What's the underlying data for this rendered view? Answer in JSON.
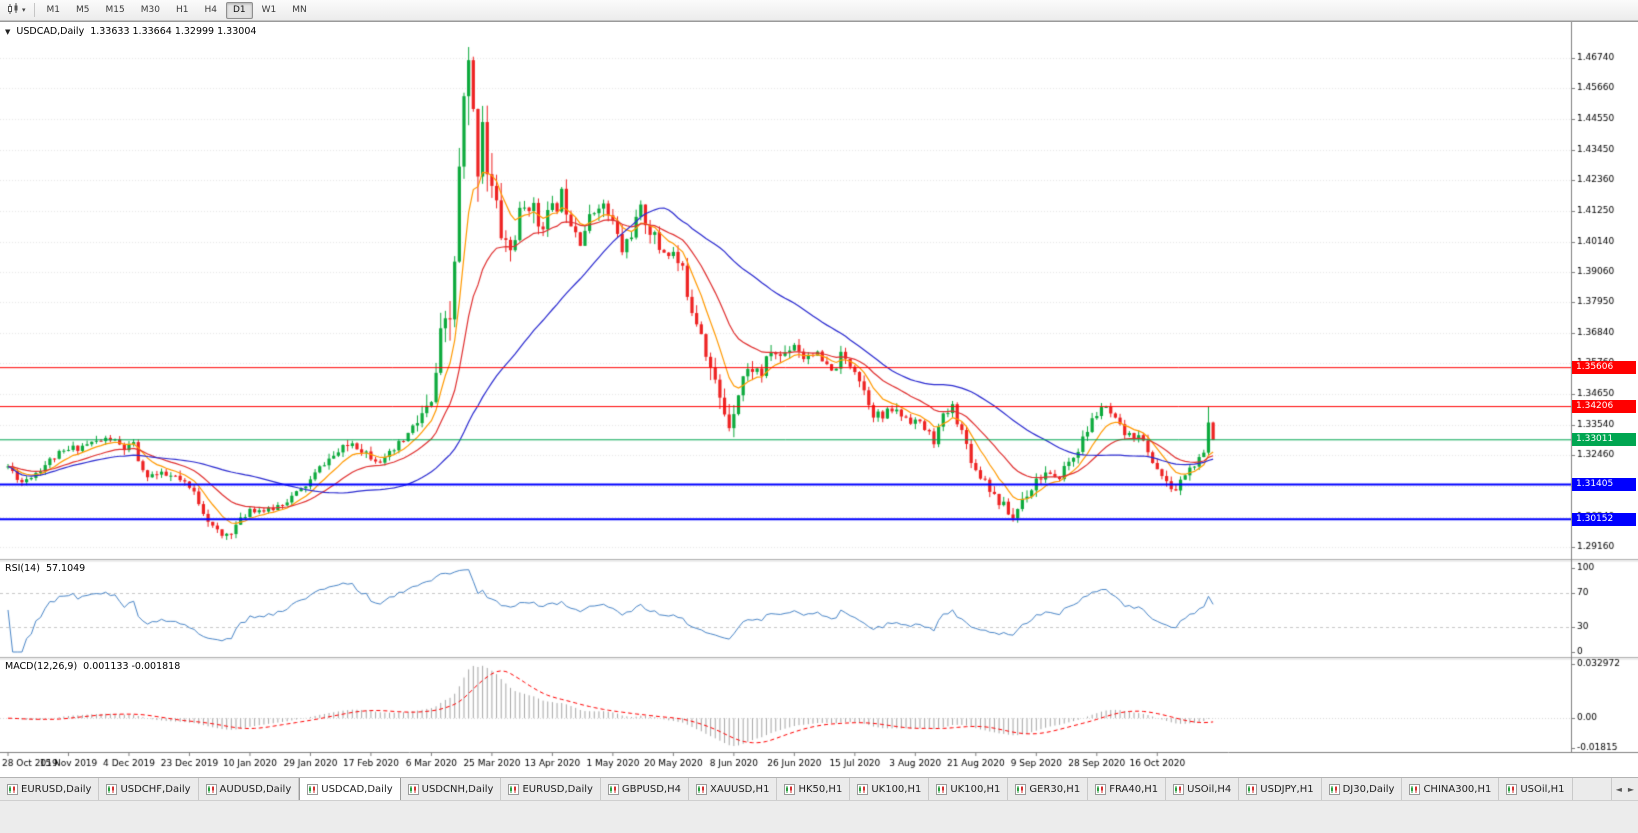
{
  "toolbar": {
    "timeframes": [
      "M1",
      "M5",
      "M15",
      "M30",
      "H1",
      "H4",
      "D1",
      "W1",
      "MN"
    ],
    "active": "D1"
  },
  "chart": {
    "symbol_period": "USDCAD,Daily",
    "ohlc_text": "1.33633 1.33664 1.32999 1.33004",
    "collapse_glyph": "▼"
  },
  "rsi_panel": {
    "label": "RSI(14)",
    "value": "57.1049"
  },
  "macd_panel": {
    "label": "MACD(12,26,9)",
    "value": "0.001133 -0.001818"
  },
  "chart_data": {
    "type": "candlestick",
    "symbol": "USDCAD",
    "timeframe": "Daily",
    "num_candles": 260,
    "seed": 11,
    "last_candle": {
      "o": 1.33633,
      "h": 1.33664,
      "l": 1.32999,
      "c": 1.33004
    },
    "prev_candle": {
      "h": 1.3421,
      "c": 1.33633
    },
    "close_anchors": [
      [
        0,
        1.3205
      ],
      [
        3,
        1.315
      ],
      [
        6,
        1.3185
      ],
      [
        10,
        1.324
      ],
      [
        14,
        1.327
      ],
      [
        18,
        1.329
      ],
      [
        22,
        1.3305
      ],
      [
        25,
        1.3268
      ],
      [
        27,
        1.328
      ],
      [
        29,
        1.318
      ],
      [
        33,
        1.3172
      ],
      [
        36,
        1.3165
      ],
      [
        40,
        1.311
      ],
      [
        44,
        1.2985
      ],
      [
        46,
        1.2952
      ],
      [
        48,
        1.2975
      ],
      [
        50,
        1.301
      ],
      [
        52,
        1.3055
      ],
      [
        56,
        1.3045
      ],
      [
        60,
        1.3085
      ],
      [
        63,
        1.312
      ],
      [
        65,
        1.3155
      ],
      [
        68,
        1.322
      ],
      [
        71,
        1.3255
      ],
      [
        74,
        1.3292
      ],
      [
        78,
        1.3245
      ],
      [
        81,
        1.3225
      ],
      [
        84,
        1.328
      ],
      [
        87,
        1.334
      ],
      [
        89,
        1.339
      ],
      [
        91,
        1.342
      ],
      [
        93,
        1.366
      ],
      [
        95,
        1.3725
      ],
      [
        96,
        1.395
      ],
      [
        97,
        1.425
      ],
      [
        98,
        1.45
      ],
      [
        99,
        1.462
      ],
      [
        100,
        1.445
      ],
      [
        101,
        1.43
      ],
      [
        102,
        1.448
      ],
      [
        103,
        1.428
      ],
      [
        104,
        1.42
      ],
      [
        106,
        1.405
      ],
      [
        108,
        1.398
      ],
      [
        110,
        1.41
      ],
      [
        112,
        1.416
      ],
      [
        114,
        1.408
      ],
      [
        117,
        1.412
      ],
      [
        119,
        1.418
      ],
      [
        121,
        1.41
      ],
      [
        123,
        1.403
      ],
      [
        125,
        1.409
      ],
      [
        127,
        1.416
      ],
      [
        129,
        1.411
      ],
      [
        130,
        1.408
      ],
      [
        132,
        1.398
      ],
      [
        134,
        1.405
      ],
      [
        136,
        1.412
      ],
      [
        138,
        1.406
      ],
      [
        140,
        1.399
      ],
      [
        143,
        1.397
      ],
      [
        145,
        1.39
      ],
      [
        147,
        1.378
      ],
      [
        149,
        1.37
      ],
      [
        151,
        1.356
      ],
      [
        153,
        1.344
      ],
      [
        155,
        1.336
      ],
      [
        156,
        1.342
      ],
      [
        158,
        1.353
      ],
      [
        160,
        1.356
      ],
      [
        162,
        1.354
      ],
      [
        164,
        1.362
      ],
      [
        166,
        1.36
      ],
      [
        169,
        1.365
      ],
      [
        171,
        1.36
      ],
      [
        173,
        1.362
      ],
      [
        175,
        1.358
      ],
      [
        177,
        1.354
      ],
      [
        179,
        1.36
      ],
      [
        182,
        1.356
      ],
      [
        184,
        1.348
      ],
      [
        186,
        1.34
      ],
      [
        188,
        1.338
      ],
      [
        190,
        1.341
      ],
      [
        192,
        1.339
      ],
      [
        195,
        1.337
      ],
      [
        197,
        1.334
      ],
      [
        199,
        1.33
      ],
      [
        201,
        1.338
      ],
      [
        203,
        1.342
      ],
      [
        205,
        1.333
      ],
      [
        208,
        1.319
      ],
      [
        210,
        1.316
      ],
      [
        212,
        1.31
      ],
      [
        214,
        1.306
      ],
      [
        216,
        1.302
      ],
      [
        218,
        1.309
      ],
      [
        220,
        1.313
      ],
      [
        221,
        1.316
      ],
      [
        223,
        1.318
      ],
      [
        225,
        1.315
      ],
      [
        227,
        1.32
      ],
      [
        229,
        1.324
      ],
      [
        231,
        1.33
      ],
      [
        233,
        1.337
      ],
      [
        235,
        1.342
      ],
      [
        237,
        1.339
      ],
      [
        239,
        1.334
      ],
      [
        241,
        1.331
      ],
      [
        243,
        1.333
      ],
      [
        245,
        1.325
      ],
      [
        247,
        1.32
      ],
      [
        249,
        1.314
      ],
      [
        251,
        1.312
      ],
      [
        253,
        1.318
      ],
      [
        255,
        1.321
      ],
      [
        257,
        1.3243
      ]
    ],
    "volatility_anchors": [
      [
        0,
        0.003
      ],
      [
        40,
        0.0036
      ],
      [
        60,
        0.0028
      ],
      [
        85,
        0.0042
      ],
      [
        92,
        0.0095
      ],
      [
        96,
        0.016
      ],
      [
        99,
        0.02
      ],
      [
        103,
        0.015
      ],
      [
        108,
        0.011
      ],
      [
        115,
        0.008
      ],
      [
        130,
        0.0062
      ],
      [
        145,
        0.007
      ],
      [
        152,
        0.0088
      ],
      [
        158,
        0.0058
      ],
      [
        170,
        0.0046
      ],
      [
        185,
        0.0044
      ],
      [
        200,
        0.004
      ],
      [
        215,
        0.0046
      ],
      [
        230,
        0.004
      ],
      [
        245,
        0.0038
      ],
      [
        259,
        0.0034
      ]
    ],
    "price_axis_labels": [
      "1.46740",
      "1.45660",
      "1.44550",
      "1.43450",
      "1.42360",
      "1.41250",
      "1.40140",
      "1.39060",
      "1.37950",
      "1.36840",
      "1.35760",
      "1.34650",
      "1.33540",
      "1.32460",
      "1.31350",
      "1.30240",
      "1.29160"
    ],
    "date_labels": [
      "28 Oct 2019",
      "15 Nov 2019",
      "4 Dec 2019",
      "23 Dec 2019",
      "10 Jan 2020",
      "29 Jan 2020",
      "17 Feb 2020",
      "6 Mar 2020",
      "25 Mar 2020",
      "13 Apr 2020",
      "1 May 2020",
      "20 May 2020",
      "8 Jun 2020",
      "26 Jun 2020",
      "15 Jul 2020",
      "3 Aug 2020",
      "21 Aug 2020",
      "9 Sep 2020",
      "28 Sep 2020",
      "16 Oct 2020"
    ],
    "date_tick_step": 13,
    "hlines": [
      {
        "label": "1.35606",
        "price": 1.35606,
        "color": "#FF0000",
        "width": 1
      },
      {
        "label": "1.34206",
        "price": 1.34206,
        "color": "#FF0000",
        "width": 1
      },
      {
        "label": "1.33011",
        "price": 1.33011,
        "color": "#00A651",
        "width": 1
      },
      {
        "label": "1.31405",
        "price": 1.31405,
        "color": "#0000FF",
        "width": 2
      },
      {
        "label": "1.30152",
        "price": 1.30152,
        "color": "#0000FF",
        "width": 2
      }
    ],
    "moving_averages": [
      {
        "period": 8,
        "method": "ema",
        "color": "#FF9900"
      },
      {
        "period": 20,
        "method": "ema",
        "color": "#E03030"
      },
      {
        "period": 45,
        "method": "sma",
        "color": "#2A2AD0"
      }
    ],
    "rsi": {
      "period": 14,
      "levels": [
        "100",
        "70",
        "30",
        "0"
      ],
      "level_lines": [
        70,
        30
      ],
      "color": "#4A86C8"
    },
    "macd": {
      "fast": 12,
      "slow": 26,
      "signal": 9,
      "scale_labels": [
        {
          "text": "0.032972",
          "value": 0.032972
        },
        {
          "text": "0.00",
          "value": 0
        },
        {
          "text": "-0.01815",
          "value": -0.01815
        }
      ],
      "histogram_color": "#A6A6A6",
      "signal_color": "#FF0000"
    },
    "colors": {
      "background": "#FFFFFF",
      "grid": "#E7E7E7",
      "up": "#0CAA3C",
      "down": "#EE2222",
      "axis_line": "#7F7F7F",
      "axis_text": "#000000"
    }
  },
  "tabs": {
    "active_index": 3,
    "scroll_left": "◄",
    "scroll_right": "►",
    "items": [
      "EURUSD,Daily",
      "USDCHF,Daily",
      "AUDUSD,Daily",
      "USDCAD,Daily",
      "USDCNH,Daily",
      "EURUSD,Daily",
      "GBPUSD,H4",
      "XAUUSD,H1",
      "HK50,H1",
      "UK100,H1",
      "UK100,H1",
      "GER30,H1",
      "FRA40,H1",
      "USOil,H4",
      "USDJPY,H1",
      "DJ30,Daily",
      "CHINA300,H1",
      "USOil,H1"
    ]
  }
}
